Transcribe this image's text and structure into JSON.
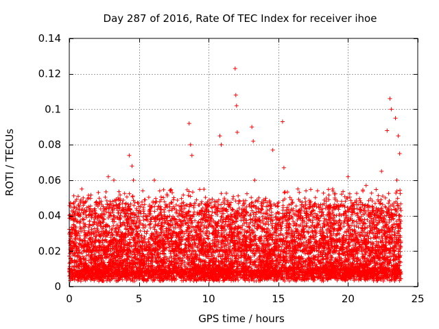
{
  "chart_data": {
    "type": "scatter",
    "title": "Day 287 of 2016, Rate Of TEC Index for receiver ihoe",
    "xlabel": "GPS time / hours",
    "ylabel": "ROTI / TECUs",
    "xlim": [
      0,
      25
    ],
    "ylim": [
      0,
      0.14
    ],
    "x_ticks": [
      0,
      5,
      10,
      15,
      20,
      25
    ],
    "x_tick_labels": [
      "0",
      "5",
      "10",
      "15",
      "20",
      "25"
    ],
    "y_ticks": [
      0,
      0.02,
      0.04,
      0.06,
      0.08,
      0.1,
      0.12,
      0.14
    ],
    "y_tick_labels": [
      "0",
      "0.02",
      "0.04",
      "0.06",
      "0.08",
      "0.1",
      "0.12",
      "0.14"
    ],
    "grid": true,
    "marker": "+",
    "series_color": "#ff0000",
    "series": [
      {
        "name": "ROTI",
        "points": [
          [
            0.1,
            0.047
          ],
          [
            0.9,
            0.055
          ],
          [
            1.0,
            0.05
          ],
          [
            1.2,
            0.048
          ],
          [
            2.8,
            0.062
          ],
          [
            3.2,
            0.06
          ],
          [
            3.5,
            0.05
          ],
          [
            4.3,
            0.074
          ],
          [
            4.5,
            0.068
          ],
          [
            4.6,
            0.06
          ],
          [
            6.1,
            0.06
          ],
          [
            8.6,
            0.092
          ],
          [
            8.7,
            0.08
          ],
          [
            8.8,
            0.074
          ],
          [
            10.8,
            0.085
          ],
          [
            10.9,
            0.08
          ],
          [
            11.9,
            0.123
          ],
          [
            11.95,
            0.108
          ],
          [
            12.0,
            0.102
          ],
          [
            12.05,
            0.087
          ],
          [
            13.1,
            0.09
          ],
          [
            13.2,
            0.082
          ],
          [
            13.3,
            0.06
          ],
          [
            14.6,
            0.077
          ],
          [
            15.3,
            0.093
          ],
          [
            15.4,
            0.067
          ],
          [
            16.4,
            0.055
          ],
          [
            18.9,
            0.055
          ],
          [
            20.0,
            0.062
          ],
          [
            21.3,
            0.057
          ],
          [
            22.4,
            0.065
          ],
          [
            22.8,
            0.088
          ],
          [
            23.0,
            0.106
          ],
          [
            23.1,
            0.1
          ],
          [
            23.4,
            0.095
          ],
          [
            23.6,
            0.085
          ],
          [
            23.7,
            0.075
          ],
          [
            23.5,
            0.06
          ]
        ],
        "dense_band": {
          "x_range": [
            0,
            23.8
          ],
          "y_lower": 0.003,
          "y_typical_max": 0.035
        }
      }
    ]
  }
}
